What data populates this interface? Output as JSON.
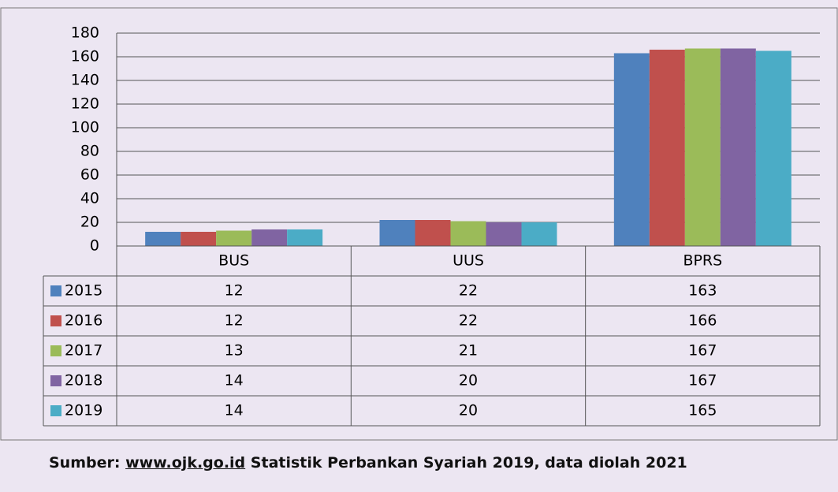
{
  "chart_data": {
    "type": "bar",
    "categories": [
      "BUS",
      "UUS",
      "BPRS"
    ],
    "series": [
      {
        "name": "2015",
        "color": "#4f81bd",
        "values": [
          12,
          22,
          163
        ]
      },
      {
        "name": "2016",
        "color": "#c0504d",
        "values": [
          12,
          22,
          166
        ]
      },
      {
        "name": "2017",
        "color": "#9bbb59",
        "values": [
          13,
          21,
          167
        ]
      },
      {
        "name": "2018",
        "color": "#8064a2",
        "values": [
          14,
          20,
          167
        ]
      },
      {
        "name": "2019",
        "color": "#4bacc6",
        "values": [
          14,
          20,
          165
        ]
      }
    ],
    "ylim": [
      0,
      180
    ],
    "yticks": [
      0,
      20,
      40,
      60,
      80,
      100,
      120,
      140,
      160,
      180
    ],
    "grid": true,
    "source": {
      "prefix": "Sumber:",
      "link": "www.ojk.go.id",
      "rest": "Statistik Perbankan Syariah 2019, data diolah 2021"
    }
  }
}
